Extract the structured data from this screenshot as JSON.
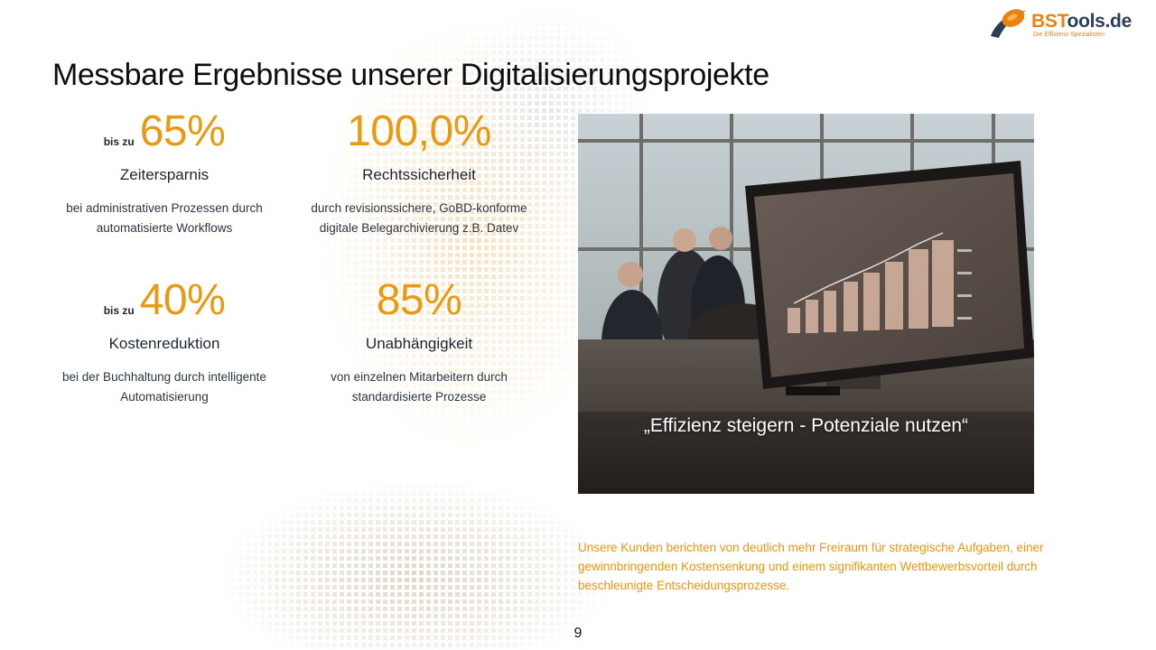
{
  "logo": {
    "brand_highlight": "BST",
    "brand_rest": "ools.de",
    "tagline": "Die Effizienz-Spezialisten"
  },
  "title": "Messbare Ergebnisse unserer Digitalisierungsprojekte",
  "stats": [
    {
      "prefix": "bis zu",
      "value": "65%",
      "label": "Zeitersparnis",
      "description": "bei administrativen Prozessen durch automatisierte Workflows"
    },
    {
      "prefix": "",
      "value": "100,0%",
      "label": "Rechtssicherheit",
      "description": "durch revisionssichere, GoBD-konforme digitale Belegarchivierung z.B. Datev"
    },
    {
      "prefix": "bis zu",
      "value": "40%",
      "label": "Kostenreduktion",
      "description": "bei der Buchhaltung durch intelligente Automatisierung"
    },
    {
      "prefix": "",
      "value": "85%",
      "label": "Unabhängigkeit",
      "description": "von einzelnen Mitarbeitern durch standardisierte Prozesse"
    }
  ],
  "photo": {
    "quote": "„Effizienz steigern - Potenziale nutzen“"
  },
  "summary": "Unsere Kunden berichten von deutlich mehr Freiraum für strategische Aufgaben, einer gewinnbringenden Kostensenkung und einem signifikanten Wettbewerbsvorteil durch beschleunigte Entscheidungsprozesse.",
  "page_number": "9",
  "colors": {
    "accent": "#e89a12",
    "text_dark": "#1c2533",
    "summary_text": "#e8960e",
    "logo_orange": "#e8830e",
    "logo_navy": "#2c3e55"
  }
}
